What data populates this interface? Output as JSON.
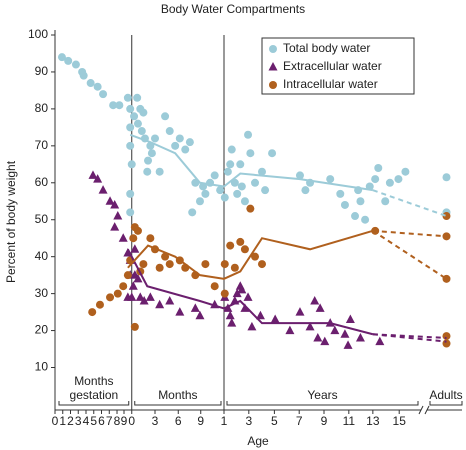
{
  "chart_data": {
    "type": "scatter",
    "title": "Body Water Compartments",
    "xlabel": "Age",
    "ylabel": "Percent of body weight",
    "ylim": [
      -1.5,
      100
    ],
    "yticks": [
      10,
      20,
      30,
      40,
      50,
      60,
      70,
      80,
      90,
      100
    ],
    "xlim": [
      0,
      52.5
    ],
    "xticks": [
      0,
      1,
      2,
      3,
      4,
      5,
      6,
      7,
      8,
      {
        "value": 8.9,
        "label": "9"
      },
      {
        "value": 9.9,
        "label": "0"
      },
      {
        "value": 12.9,
        "label": "3"
      },
      {
        "value": 15.9,
        "label": "6"
      },
      {
        "value": 18.8,
        "label": "9"
      },
      {
        "value": 21.8,
        "label": "1"
      },
      {
        "value": 25.0,
        "label": "3"
      },
      {
        "value": 28.3,
        "label": "5"
      },
      {
        "value": 31.5,
        "label": "7"
      },
      {
        "value": 34.7,
        "label": "9"
      },
      {
        "value": 37.9,
        "label": "11"
      },
      {
        "value": 41.0,
        "label": "13"
      },
      {
        "value": 44.4,
        "label": "15"
      }
    ],
    "groups": [
      [
        "Months",
        "gestation"
      ],
      [
        "Months"
      ],
      [
        "Years"
      ],
      [
        "Adults"
      ]
    ],
    "legend": "upper right",
    "series": [
      {
        "name": "Total body water",
        "color": "#9ccbd8",
        "marker": "circle",
        "x": [
          0.9,
          1.7,
          2.7,
          3.5,
          3.7,
          4.6,
          5.5,
          6.2,
          7.5,
          8.3,
          9.4,
          9.7,
          9.7,
          9.7,
          9.9,
          9.7,
          9.7,
          10.2,
          10.6,
          11.0,
          11.4,
          10.7,
          11.2,
          11.6,
          12.0,
          12.3,
          12.5,
          11.9,
          12.9,
          13.5,
          14.2,
          14.8,
          15.5,
          16.1,
          16.8,
          17.4,
          17.7,
          18.1,
          18.7,
          19.1,
          19.4,
          20.0,
          20.6,
          21.3,
          21.9,
          22.3,
          22.6,
          22.8,
          23.2,
          23.5,
          23.9,
          24.1,
          24.5,
          24.9,
          25.2,
          25.8,
          26.7,
          27.1,
          28.0,
          31.6,
          32.3,
          32.9,
          35.5,
          36.8,
          37.4,
          38.7,
          39.1,
          39.4,
          40.0,
          40.6,
          41.3,
          41.7,
          42.6,
          43.2,
          44.3,
          45.2,
          50.5,
          50.5
        ],
        "values": [
          94,
          93,
          92,
          90,
          89,
          87,
          86,
          84,
          81,
          81,
          83,
          80,
          75,
          70,
          65,
          57,
          52,
          78,
          83,
          80,
          79,
          76,
          74,
          72,
          66,
          70,
          68,
          63,
          72,
          63,
          78,
          74,
          70,
          72,
          69,
          71,
          52,
          60,
          55,
          59,
          57,
          60,
          62,
          58,
          56,
          63,
          65,
          69,
          60,
          57,
          65,
          59,
          55,
          73,
          68,
          60,
          63,
          58,
          68,
          62,
          58,
          60,
          61,
          57,
          54,
          51,
          58,
          55,
          50,
          59,
          61,
          64,
          55,
          60,
          61,
          63,
          61.5,
          52
        ],
        "trend": {
          "x": [
            9.7,
            12.3,
            15.5,
            18.7,
            21.8,
            23.9,
            31.6,
            41.0
          ],
          "values": [
            73,
            71,
            68,
            60,
            59,
            62.5,
            61,
            58
          ]
        },
        "dashed": [
          {
            "x": [
              41.0,
              50.5
            ],
            "values": [
              58,
              51
            ]
          }
        ]
      },
      {
        "name": "Extracellular water",
        "color": "#6b1f6e",
        "marker": "triangle",
        "x": [
          4.9,
          5.5,
          6.2,
          7.1,
          7.7,
          7.7,
          8.1,
          8.8,
          9.4,
          9.4,
          9.7,
          9.7,
          9.9,
          10.1,
          10.3,
          10.3,
          10.7,
          11.0,
          11.5,
          12.3,
          13.5,
          14.8,
          16.1,
          18.1,
          18.7,
          20.6,
          21.9,
          22.3,
          22.6,
          22.8,
          23.2,
          23.5,
          23.9,
          24.1,
          24.5,
          24.9,
          25.4,
          26.5,
          28.4,
          30.3,
          31.6,
          32.9,
          33.5,
          34.2,
          33.9,
          34.8,
          35.5,
          36.1,
          37.4,
          37.8,
          38.1,
          39.4,
          41.9
        ],
        "values": [
          62,
          61,
          58,
          55,
          54,
          48,
          51,
          45,
          41,
          29,
          35,
          39,
          29,
          32,
          42,
          35,
          34,
          29,
          28,
          29,
          27,
          28,
          25,
          26,
          24,
          27,
          29,
          26,
          24,
          22,
          28,
          30,
          32,
          31,
          26,
          29,
          21,
          24,
          23,
          20,
          25,
          21,
          28,
          26,
          18,
          17,
          22,
          20,
          19,
          16,
          23,
          18,
          17
        ],
        "trend": {
          "x": [
            9.4,
            11.9,
            18.7,
            21.8,
            23.9,
            26.7,
            35.5,
            41.0
          ],
          "values": [
            42,
            32,
            28,
            26,
            28,
            22,
            22,
            19
          ]
        },
        "dashed": [
          {
            "x": [
              41.0,
              50.5
            ],
            "values": [
              19,
              18
            ]
          },
          {
            "x": [
              41.0,
              50.5
            ],
            "values": [
              19,
              17
            ]
          }
        ]
      },
      {
        "name": "Intracellular water",
        "color": "#b0601e",
        "marker": "circle",
        "x": [
          4.8,
          5.8,
          7.1,
          8.1,
          8.8,
          9.4,
          9.7,
          10.1,
          10.3,
          10.7,
          10.3,
          11.0,
          11.4,
          12.3,
          12.9,
          13.5,
          14.2,
          14.8,
          16.1,
          16.8,
          18.1,
          19.4,
          20.6,
          21.9,
          21.9,
          22.6,
          23.2,
          23.9,
          24.5,
          25.8,
          25.2,
          26.7,
          41.3,
          50.5,
          50.5,
          50.5,
          50.5,
          50.5
        ],
        "values": [
          25,
          27,
          29,
          30,
          32,
          35,
          39,
          45,
          48,
          47,
          21,
          36,
          38,
          45,
          42,
          37,
          40,
          38,
          39,
          37,
          35,
          38,
          32,
          38,
          30,
          43,
          37,
          44,
          42,
          40,
          53,
          38,
          47,
          51,
          45.5,
          34,
          18.5,
          16.5
        ],
        "trend": {
          "x": [
            9.4,
            12.0,
            15.5,
            18.7,
            21.8,
            23.9,
            26.7,
            32.9,
            41.0
          ],
          "values": [
            37,
            43,
            40,
            35,
            34,
            36,
            45,
            42,
            47
          ]
        },
        "dashed": [
          {
            "x": [
              41.0,
              50.5
            ],
            "values": [
              47,
              45.5
            ]
          },
          {
            "x": [
              41.0,
              50.5
            ],
            "values": [
              47,
              34
            ]
          }
        ]
      }
    ]
  }
}
